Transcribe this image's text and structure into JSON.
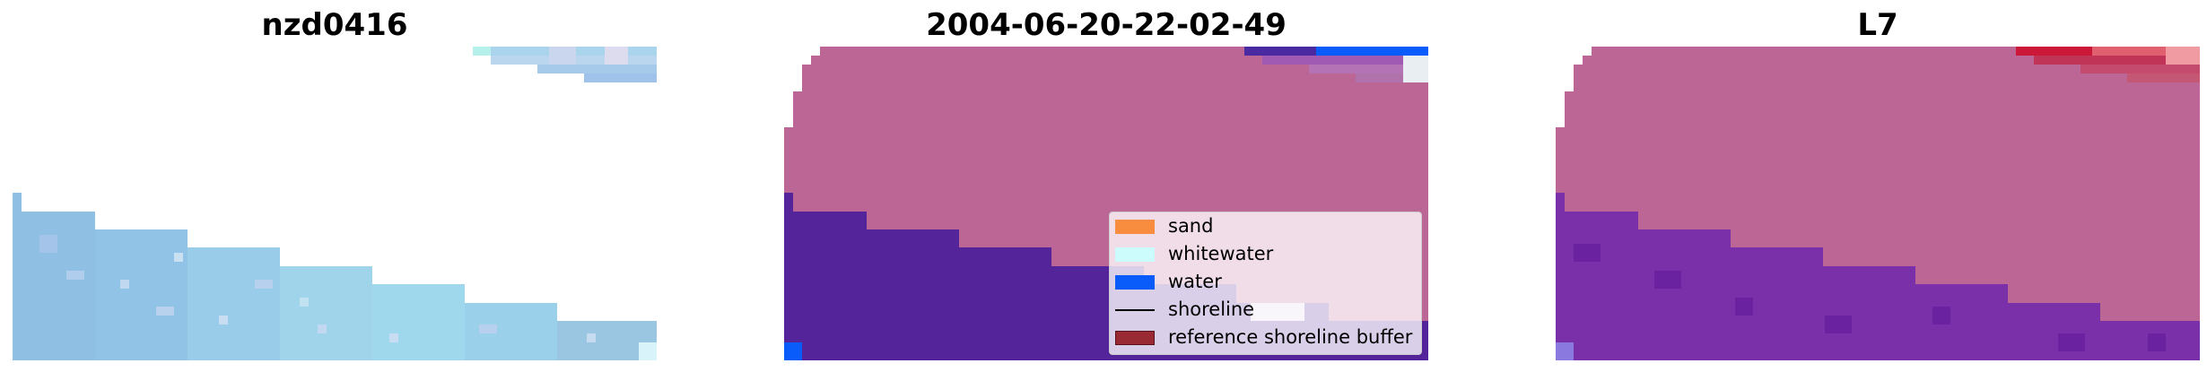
{
  "panels": [
    {
      "title": "nzd0416"
    },
    {
      "title": "2004-06-20-22-02-49"
    },
    {
      "title": "L7"
    }
  ],
  "legend": {
    "items": [
      {
        "label": "sand",
        "color": "#f88d3f",
        "type": "patch"
      },
      {
        "label": "whitewater",
        "color": "#ccfcfc",
        "type": "patch"
      },
      {
        "label": "water",
        "color": "#0a5cfa",
        "type": "patch"
      },
      {
        "label": "shoreline",
        "color": "#000000",
        "type": "line"
      },
      {
        "label": "reference shoreline buffer",
        "color": "#992a34",
        "type": "patch"
      }
    ]
  },
  "colors": {
    "image_water_light": "#a7d7ef",
    "image_water_blue": "#8fbfe3",
    "classified_land": "#bc6696",
    "classified_water_overlay": "#54259a",
    "classified_white": "#f1e4ee",
    "l7_water_overlay": "#7a30a8",
    "l7_red": "#cc1838"
  }
}
